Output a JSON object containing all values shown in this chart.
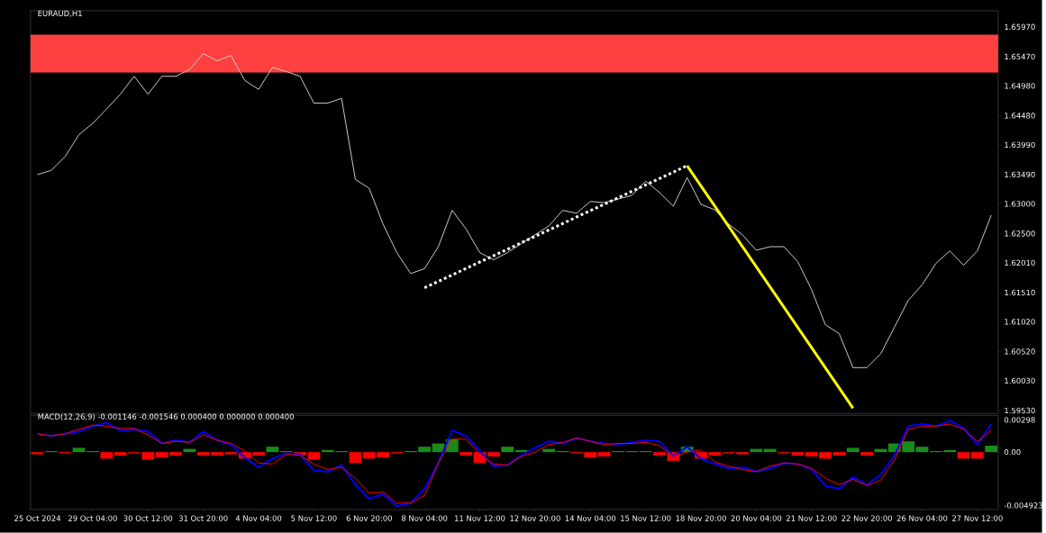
{
  "chart_data": [
    {
      "type": "line",
      "title": "EURAUD,H1",
      "tick_labels": "y",
      "categories": [
        null,
        null,
        null,
        null,
        null,
        null,
        null,
        null,
        null,
        null,
        null,
        null,
        null,
        null,
        null,
        null,
        null,
        null,
        null,
        null,
        null,
        null,
        null,
        null,
        null,
        null,
        null,
        null,
        null,
        null,
        null,
        null,
        null,
        null,
        null,
        null,
        null,
        null,
        null,
        null,
        null,
        null,
        null,
        null,
        null,
        null,
        null,
        null,
        null,
        null,
        null,
        null,
        null,
        null,
        null,
        null,
        null,
        null,
        null,
        null,
        null,
        null,
        null,
        null,
        null,
        null,
        null,
        null,
        null,
        null
      ],
      "ylim": [
        1.5948,
        1.6624
      ],
      "yticks": [
        {
          "value": 1.6597,
          "label": "1.65970"
        },
        {
          "value": 1.6547,
          "label": "1.65470"
        },
        {
          "value": 1.6498,
          "label": "1.64980"
        },
        {
          "value": 1.6448,
          "label": "1.64480"
        },
        {
          "value": 1.6399,
          "label": "1.63990"
        },
        {
          "value": 1.6349,
          "label": "1.63490"
        },
        {
          "value": 1.63,
          "label": "1.63000"
        },
        {
          "value": 1.625,
          "label": "1.62500"
        },
        {
          "value": 1.6201,
          "label": "1.62010"
        },
        {
          "value": 1.6151,
          "label": "1.61510"
        },
        {
          "value": 1.6102,
          "label": "1.61020"
        },
        {
          "value": 1.6052,
          "label": "1.60520"
        },
        {
          "value": 1.6003,
          "label": "1.60030"
        },
        {
          "value": 1.5953,
          "label": "1.59530"
        }
      ],
      "bands": [
        {
          "axis": "y",
          "from": 1.6522,
          "to": 1.6582,
          "color": "#ff4040"
        }
      ],
      "series": [
        {
          "color": "#c8c8c8",
          "values": [
            1.6349,
            1.6356,
            1.6379,
            1.6416,
            1.6435,
            1.6459,
            1.6484,
            1.6514,
            1.6484,
            1.6514,
            1.6514,
            1.6525,
            1.6552,
            1.654,
            1.6549,
            1.6507,
            1.6492,
            1.6529,
            1.6522,
            1.6514,
            1.6469,
            1.6469,
            1.6477,
            1.6341,
            1.6326,
            1.6266,
            1.6218,
            1.6183,
            1.6191,
            1.6228,
            1.6289,
            1.6258,
            1.6218,
            1.6206,
            1.6218,
            1.6233,
            1.6248,
            1.6263,
            1.6289,
            1.6284,
            1.6304,
            1.6302,
            1.6308,
            1.6314,
            1.6338,
            1.6319,
            1.6296,
            1.6344,
            1.6299,
            1.629,
            1.6266,
            1.6248,
            1.6222,
            1.6228,
            1.6228,
            1.6203,
            1.6156,
            1.6097,
            1.6082,
            1.6025,
            1.6025,
            1.6048,
            1.6093,
            1.6138,
            1.6164,
            1.62,
            1.6221,
            1.6197,
            1.6221,
            1.6281
          ]
        },
        {
          "color": "#ffffff",
          "line_style": "dotted",
          "values": [
            null,
            null,
            null,
            null,
            null,
            null,
            null,
            null,
            null,
            null,
            null,
            null,
            null,
            null,
            null,
            null,
            null,
            null,
            null,
            null,
            null,
            null,
            null,
            null,
            null,
            null,
            null,
            null,
            1.6159,
            null,
            null,
            null,
            null,
            null,
            null,
            null,
            null,
            null,
            null,
            null,
            null,
            null,
            null,
            null,
            null,
            null,
            null,
            1.6364,
            null,
            null,
            null,
            null,
            null,
            null,
            null,
            null,
            null,
            null,
            null,
            null,
            null,
            null,
            null,
            null,
            null,
            null,
            null,
            null,
            null,
            null
          ]
        },
        {
          "color": "#ffff00",
          "line_style": "solid",
          "values": [
            null,
            null,
            null,
            null,
            null,
            null,
            null,
            null,
            null,
            null,
            null,
            null,
            null,
            null,
            null,
            null,
            null,
            null,
            null,
            null,
            null,
            null,
            null,
            null,
            null,
            null,
            null,
            null,
            null,
            null,
            null,
            null,
            null,
            null,
            null,
            null,
            null,
            null,
            null,
            null,
            null,
            null,
            null,
            null,
            null,
            null,
            null,
            1.6364,
            null,
            null,
            null,
            null,
            null,
            null,
            null,
            null,
            null,
            null,
            null,
            1.5957,
            null,
            null,
            null,
            null,
            null,
            null,
            null,
            null,
            null,
            null
          ]
        }
      ]
    },
    {
      "type": "line",
      "title": "MACD(12,26,9) -0.001146 -0.001546 0.000400 0.000000 0.000400",
      "categories": [
        "25 Oct 2024",
        null,
        null,
        null,
        "29 Oct 04:00",
        null,
        null,
        null,
        "30 Oct 12:00",
        null,
        null,
        null,
        "31 Oct 20:00",
        null,
        null,
        null,
        "4 Nov 04:00",
        null,
        null,
        null,
        "5 Nov 12:00",
        null,
        null,
        null,
        "6 Nov 20:00",
        null,
        null,
        null,
        "8 Nov 04:00",
        null,
        null,
        null,
        "11 Nov 12:00",
        null,
        null,
        null,
        "12 Nov 20:00",
        null,
        null,
        null,
        "14 Nov 04:00",
        null,
        null,
        null,
        "15 Nov 12:00",
        null,
        null,
        null,
        "18 Nov 20:00",
        null,
        null,
        null,
        "20 Nov 04:00",
        null,
        null,
        null,
        "21 Nov 12:00",
        null,
        null,
        null,
        "22 Nov 20:00",
        null,
        null,
        null,
        "26 Nov 04:00",
        null,
        null,
        null,
        "27 Nov 12:00",
        null
      ],
      "ylim": [
        -0.0053,
        0.0034
      ],
      "yticks": [
        {
          "value": 0.00298,
          "label": "0.00298"
        },
        {
          "value": 0,
          "label": "0.00"
        },
        {
          "value": -0.004923,
          "label": "-0.004923"
        }
      ],
      "series": [
        {
          "type": "bar",
          "values": [
            -0.0002,
            0.0001,
            -0.0001,
            0.0004,
            0.0001,
            -0.0006,
            -0.0003,
            -0.0001,
            -0.0007,
            -0.0005,
            -0.0003,
            0.0003,
            -0.0003,
            -0.0003,
            -0.0002,
            -0.0006,
            -0.0003,
            0.0005,
            0.0001,
            -0.0003,
            -0.0007,
            0.0002,
            0.0001,
            -0.001,
            -0.0006,
            -0.0005,
            -0.0001,
            0.0001,
            0.0005,
            0.0008,
            0.0012,
            -0.0003,
            -0.001,
            -0.0004,
            0.0005,
            0.0002,
            null,
            0.0003,
            0.0001,
            -0.0001,
            -0.0005,
            -0.0004,
            0.0001,
            0.0001,
            0.0001,
            -0.0003,
            -0.0008,
            0.0005,
            -0.0006,
            -0.0003,
            -0.0001,
            -0.0002,
            0.0003,
            0.0003,
            -0.0001,
            -0.0003,
            -0.0004,
            -0.0006,
            -0.0003,
            0.0004,
            -0.0003,
            0.0003,
            0.0008,
            0.001,
            0.0005,
            0.0001,
            0.0002,
            -0.0006,
            -0.0006,
            0.0006
          ],
          "colors": [
            "#ff0000",
            "#1a8a1a",
            "#ff0000",
            "#1a8a1a",
            "#1a8a1a",
            "#ff0000",
            "#ff0000",
            "#ff0000",
            "#ff0000",
            "#ff0000",
            "#ff0000",
            "#1a8a1a",
            "#ff0000",
            "#ff0000",
            "#ff0000",
            "#ff0000",
            "#ff0000",
            "#1a8a1a",
            "#1a8a1a",
            "#ff0000",
            "#ff0000",
            "#1a8a1a",
            "#1a8a1a",
            "#ff0000",
            "#ff0000",
            "#ff0000",
            "#ff0000",
            "#1a8a1a",
            "#1a8a1a",
            "#1a8a1a",
            "#1a8a1a",
            "#ff0000",
            "#ff0000",
            "#ff0000",
            "#1a8a1a",
            "#1a8a1a",
            "#1a8a1a",
            "#1a8a1a",
            "#1a8a1a",
            "#ff0000",
            "#ff0000",
            "#ff0000",
            "#1a8a1a",
            "#1a8a1a",
            "#1a8a1a",
            "#ff0000",
            "#ff0000",
            "#1a8a1a",
            "#ff0000",
            "#ff0000",
            "#ff0000",
            "#ff0000",
            "#1a8a1a",
            "#1a8a1a",
            "#ff0000",
            "#ff0000",
            "#ff0000",
            "#ff0000",
            "#ff0000",
            "#1a8a1a",
            "#ff0000",
            "#1a8a1a",
            "#1a8a1a",
            "#1a8a1a",
            "#1a8a1a",
            "#1a8a1a",
            "#1a8a1a",
            "#ff0000",
            "#ff0000",
            "#1a8a1a"
          ]
        },
        {
          "color": "#0000ff",
          "values": [
            0.0017,
            0.0015,
            0.0017,
            0.0019,
            0.0024,
            0.0027,
            0.002,
            0.0021,
            0.0019,
            0.0008,
            0.0011,
            0.0009,
            0.0019,
            0.0011,
            0.0007,
            -0.0005,
            -0.0014,
            -0.0006,
            -0.0001,
            -0.0002,
            -0.0017,
            -0.0018,
            -0.0012,
            -0.003,
            -0.0043,
            -0.0039,
            -0.005,
            -0.0047,
            -0.0034,
            -0.001,
            0.002,
            0.0015,
            0.0001,
            -0.0013,
            -0.0012,
            -0.0003,
            0.0004,
            0.001,
            0.0008,
            0.0013,
            0.001,
            0.0008,
            0.0007,
            0.0009,
            0.0011,
            0.001,
            -0.0004,
            0.0005,
            -0.0006,
            -0.0011,
            -0.0015,
            -0.0014,
            -0.0018,
            -0.0015,
            -0.001,
            -0.0011,
            -0.0016,
            -0.0031,
            -0.0034,
            -0.0023,
            -0.003,
            -0.0021,
            -0.0003,
            0.0024,
            0.0026,
            0.0024,
            0.0029,
            0.0022,
            0.0007,
            0.0026
          ]
        },
        {
          "color": "#ff0000",
          "values": [
            0.0017,
            0.0015,
            0.0017,
            0.0021,
            0.0025,
            0.0024,
            0.0022,
            0.0022,
            0.0016,
            0.0008,
            0.001,
            0.0009,
            0.0016,
            0.0011,
            0.0008,
            0.0001,
            -0.001,
            -0.0011,
            -0.0002,
            -0.0003,
            -0.0011,
            -0.0016,
            -0.0014,
            -0.0024,
            -0.0038,
            -0.0037,
            -0.0047,
            -0.0047,
            -0.004,
            -0.001,
            0.0012,
            0.0012,
            -0.0002,
            -0.0011,
            -0.0012,
            -0.0004,
            0.0,
            0.0007,
            0.0009,
            0.0013,
            0.001,
            0.0007,
            0.0008,
            0.0008,
            0.0009,
            0.0006,
            -0.0004,
            0.0,
            0.0002,
            -0.0009,
            -0.0013,
            -0.0016,
            -0.0018,
            -0.0013,
            -0.001,
            -0.0011,
            -0.0015,
            -0.0024,
            -0.003,
            -0.0025,
            -0.0031,
            -0.0026,
            -0.0007,
            0.0021,
            0.0024,
            0.0024,
            0.0026,
            0.0021,
            0.001,
            0.002
          ]
        }
      ]
    }
  ]
}
